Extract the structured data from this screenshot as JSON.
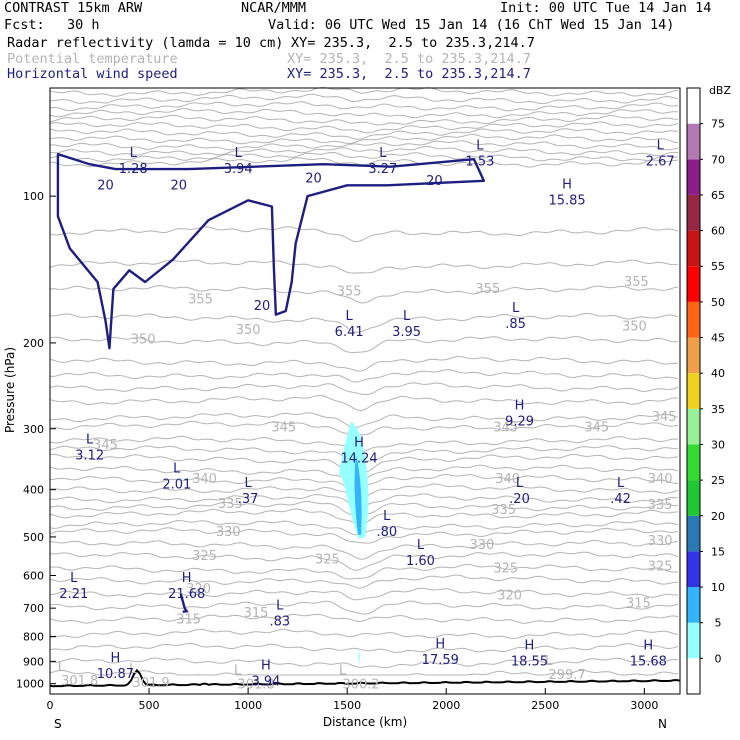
{
  "header": {
    "title": "CONTRAST 15km ARW",
    "source": "NCAR/MMM",
    "init": "Init: 00 UTC Tue 14 Jan 14",
    "fcst_label": "Fcst:",
    "fcst_value": "30 h",
    "valid": "Valid: 06 UTC Wed 15 Jan 14 (16 ChT Wed 15 Jan 14)",
    "fields": [
      {
        "name": "Radar reflectivity (lamda = 10 cm)",
        "xy": "XY= 235.3,  2.5 to 235.3,214.7",
        "color": "#000000"
      },
      {
        "name": "Potential temperature",
        "xy": "XY= 235.3,  2.5 to 235.3,214.7",
        "color": "#b4b4b4"
      },
      {
        "name": "Horizontal wind speed",
        "xy": "XY= 235.3,  2.5 to 235.3,214.7",
        "color": "#1e1e82"
      }
    ]
  },
  "chart_data": {
    "type": "cross-section",
    "xlabel": "Distance (km)",
    "ylabel": "Pressure (hPa)",
    "x_ticks": [
      0,
      500,
      1000,
      1500,
      2000,
      2500,
      3000
    ],
    "y_ticks": [
      100,
      200,
      300,
      400,
      500,
      600,
      700,
      800,
      900,
      1000
    ],
    "xlim": [
      0,
      3180
    ],
    "ylim": [
      1050,
      60
    ],
    "y_scale": "log",
    "endpoints": {
      "left": "S",
      "right": "N"
    },
    "colorbar": {
      "unit": "dBZ",
      "levels": [
        0,
        5,
        10,
        15,
        20,
        25,
        30,
        35,
        40,
        45,
        50,
        55,
        60,
        65,
        70,
        75
      ],
      "colors": [
        "#ffffff",
        "#96ffff",
        "#32b4ff",
        "#3232e6",
        "#2a78b4",
        "#1ec832",
        "#32dc32",
        "#96f096",
        "#f0d21e",
        "#f0a04b",
        "#ff6414",
        "#ff0000",
        "#c81414",
        "#962846",
        "#8c1e8c",
        "#b478b4",
        "#ffffff"
      ]
    },
    "theta_labels": [
      {
        "v": "355",
        "x": 760,
        "p": 163
      },
      {
        "v": "355",
        "x": 1510,
        "p": 157
      },
      {
        "v": "355",
        "x": 2210,
        "p": 155
      },
      {
        "v": "355",
        "x": 2960,
        "p": 150
      },
      {
        "v": "350",
        "x": 470,
        "p": 197
      },
      {
        "v": "350",
        "x": 1000,
        "p": 188
      },
      {
        "v": "350",
        "x": 2950,
        "p": 185
      },
      {
        "v": "345",
        "x": 280,
        "p": 324
      },
      {
        "v": "345",
        "x": 1180,
        "p": 298
      },
      {
        "v": "345",
        "x": 2300,
        "p": 298
      },
      {
        "v": "345",
        "x": 2760,
        "p": 298
      },
      {
        "v": "345",
        "x": 3100,
        "p": 284
      },
      {
        "v": "340",
        "x": 780,
        "p": 380
      },
      {
        "v": "340",
        "x": 2310,
        "p": 380
      },
      {
        "v": "340",
        "x": 3080,
        "p": 380
      },
      {
        "v": "335",
        "x": 910,
        "p": 428
      },
      {
        "v": "335",
        "x": 2290,
        "p": 440
      },
      {
        "v": "335",
        "x": 3080,
        "p": 430
      },
      {
        "v": "330",
        "x": 900,
        "p": 488
      },
      {
        "v": "330",
        "x": 2180,
        "p": 520
      },
      {
        "v": "330",
        "x": 3080,
        "p": 510
      },
      {
        "v": "325",
        "x": 780,
        "p": 547
      },
      {
        "v": "325",
        "x": 1400,
        "p": 556
      },
      {
        "v": "325",
        "x": 2300,
        "p": 580
      },
      {
        "v": "325",
        "x": 3080,
        "p": 575
      },
      {
        "v": "320",
        "x": 750,
        "p": 640
      },
      {
        "v": "320",
        "x": 2320,
        "p": 660
      },
      {
        "v": "315",
        "x": 700,
        "p": 738
      },
      {
        "v": "315",
        "x": 1040,
        "p": 716
      },
      {
        "v": "315",
        "x": 2970,
        "p": 685
      }
    ],
    "surface_theta_labels": [
      {
        "v": "301.8",
        "x": 150,
        "p": 987
      },
      {
        "v": "301.9",
        "x": 510,
        "p": 998
      },
      {
        "v": "301.8",
        "x": 1040,
        "p": 1005
      },
      {
        "v": "300.2",
        "x": 1570,
        "p": 1005
      },
      {
        "v": "299.7",
        "x": 2610,
        "p": 960
      }
    ],
    "wind_contour_label": "20",
    "wind_extrema": [
      {
        "t": "L",
        "v": "1.28",
        "x": 420,
        "p": 88
      },
      {
        "t": "L",
        "v": "3.94",
        "x": 950,
        "p": 88
      },
      {
        "t": "L",
        "v": "3.27",
        "x": 1680,
        "p": 88
      },
      {
        "t": "L",
        "v": "1.53",
        "x": 2170,
        "p": 85
      },
      {
        "t": "H",
        "v": "15.85",
        "x": 2610,
        "p": 102
      },
      {
        "t": "L",
        "v": "2.67",
        "x": 3080,
        "p": 85
      },
      {
        "t": "L",
        "v": "6.41",
        "x": 1510,
        "p": 190
      },
      {
        "t": "L",
        "v": "3.95",
        "x": 1800,
        "p": 190
      },
      {
        "t": "L",
        "v": ".85",
        "x": 2350,
        "p": 183
      },
      {
        "t": "H",
        "v": "9.29",
        "x": 2370,
        "p": 290
      },
      {
        "t": "L",
        "v": "3.12",
        "x": 200,
        "p": 340
      },
      {
        "t": "H",
        "v": "14.24",
        "x": 1560,
        "p": 345
      },
      {
        "t": "L",
        "v": "2.01",
        "x": 640,
        "p": 390
      },
      {
        "t": "L",
        "v": ".37",
        "x": 1000,
        "p": 418
      },
      {
        "t": "L",
        "v": ".20",
        "x": 2370,
        "p": 418
      },
      {
        "t": "L",
        "v": ".42",
        "x": 2880,
        "p": 418
      },
      {
        "t": "L",
        "v": ".80",
        "x": 1700,
        "p": 488
      },
      {
        "t": "L",
        "v": "1.60",
        "x": 1870,
        "p": 560
      },
      {
        "t": "L",
        "v": "2.21",
        "x": 120,
        "p": 655
      },
      {
        "t": "H",
        "v": "21.68",
        "x": 690,
        "p": 655
      },
      {
        "t": "L",
        "v": ".83",
        "x": 1160,
        "p": 745
      },
      {
        "t": "H",
        "v": "17.59",
        "x": 1970,
        "p": 895
      },
      {
        "t": "H",
        "v": "18.55",
        "x": 2420,
        "p": 900
      },
      {
        "t": "H",
        "v": "15.68",
        "x": 3020,
        "p": 900
      },
      {
        "t": "H",
        "v": "10.87",
        "x": 330,
        "p": 955
      },
      {
        "t": "H",
        "v": "3.94",
        "x": 1090,
        "p": 990
      }
    ]
  }
}
